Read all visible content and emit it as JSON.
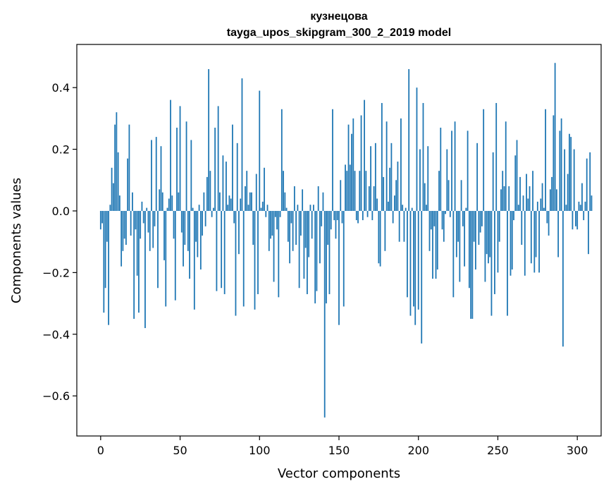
{
  "chart_data": {
    "type": "bar",
    "title": "кузнецова",
    "subtitle": "tayga_upos_skipgram_300_2_2019 model",
    "xlabel": "Vector components",
    "ylabel": "Components values",
    "xlim": [
      -15,
      315
    ],
    "ylim": [
      -0.73,
      0.54
    ],
    "xticks": [
      0,
      50,
      100,
      150,
      200,
      250,
      300
    ],
    "yticks": [
      -0.6,
      -0.4,
      -0.2,
      0.0,
      0.2,
      0.4
    ],
    "ytick_labels": [
      "−0.6",
      "−0.4",
      "−0.2",
      "0.0",
      "0.2",
      "0.4"
    ],
    "bar_color": "#1f77b4",
    "grid": false,
    "values": [
      -0.06,
      -0.04,
      -0.33,
      -0.25,
      -0.1,
      -0.37,
      0.02,
      0.14,
      0.09,
      0.28,
      0.32,
      0.19,
      0.05,
      -0.18,
      -0.13,
      -0.09,
      -0.11,
      0.17,
      0.28,
      -0.08,
      0.06,
      -0.35,
      -0.06,
      -0.21,
      -0.33,
      -0.09,
      0.03,
      -0.04,
      -0.38,
      0.01,
      -0.07,
      -0.13,
      0.23,
      -0.12,
      -0.05,
      0.24,
      -0.25,
      0.07,
      0.21,
      0.06,
      -0.16,
      -0.31,
      0.01,
      0.04,
      0.36,
      0.05,
      -0.09,
      -0.29,
      0.27,
      0.06,
      0.34,
      -0.07,
      -0.18,
      -0.11,
      0.29,
      -0.13,
      -0.22,
      0.23,
      0.01,
      -0.32,
      -0.1,
      -0.15,
      0.02,
      -0.19,
      -0.08,
      0.06,
      -0.05,
      0.11,
      0.46,
      0.13,
      -0.02,
      0.01,
      0.27,
      -0.26,
      0.34,
      0.06,
      -0.25,
      0.18,
      -0.27,
      0.16,
      0.02,
      0.05,
      0.04,
      0.28,
      -0.04,
      -0.34,
      0.22,
      -0.14,
      0.04,
      0.43,
      -0.31,
      0.08,
      0.13,
      0.02,
      0.06,
      0.06,
      -0.11,
      -0.32,
      0.12,
      -0.27,
      0.39,
      0.01,
      0.03,
      0.14,
      -0.02,
      0.02,
      -0.13,
      -0.09,
      -0.08,
      -0.23,
      -0.02,
      -0.06,
      -0.28,
      -0.02,
      0.33,
      0.13,
      0.06,
      0.01,
      -0.1,
      -0.17,
      -0.04,
      -0.13,
      0.08,
      -0.11,
      0.02,
      -0.25,
      -0.08,
      0.07,
      -0.22,
      -0.12,
      -0.27,
      -0.15,
      0.02,
      -0.09,
      0.02,
      -0.3,
      -0.26,
      0.08,
      -0.17,
      -0.05,
      0.06,
      -0.67,
      -0.3,
      -0.11,
      -0.27,
      -0.06,
      0.33,
      -0.03,
      -0.09,
      -0.03,
      -0.37,
      0.1,
      -0.04,
      -0.31,
      0.15,
      0.13,
      0.28,
      0.15,
      0.25,
      0.3,
      0.13,
      -0.03,
      -0.04,
      0.13,
      0.31,
      -0.03,
      0.36,
      0.13,
      -0.02,
      0.08,
      0.21,
      -0.03,
      0.08,
      0.22,
      0.04,
      -0.17,
      -0.18,
      0.35,
      0.11,
      -0.13,
      0.29,
      0.03,
      0.14,
      0.22,
      -0.04,
      0.05,
      0.1,
      0.16,
      -0.1,
      0.3,
      0.02,
      -0.1,
      0.01,
      -0.28,
      0.46,
      -0.34,
      0.01,
      -0.31,
      -0.37,
      0.4,
      -0.32,
      0.2,
      -0.43,
      0.35,
      0.09,
      0.02,
      0.21,
      -0.13,
      -0.06,
      -0.22,
      -0.05,
      -0.22,
      -0.19,
      0.13,
      0.27,
      -0.06,
      -0.1,
      -0.01,
      0.2,
      0.1,
      -0.02,
      0.26,
      -0.28,
      0.29,
      -0.15,
      -0.1,
      -0.23,
      0.1,
      -0.05,
      -0.18,
      0.01,
      0.26,
      -0.25,
      -0.35,
      -0.35,
      -0.1,
      -0.19,
      0.22,
      -0.11,
      -0.07,
      -0.05,
      0.33,
      -0.23,
      -0.14,
      -0.17,
      -0.15,
      -0.34,
      0.19,
      -0.27,
      0.35,
      -0.2,
      -0.1,
      0.07,
      0.13,
      0.08,
      0.29,
      -0.34,
      0.08,
      -0.21,
      -0.19,
      -0.03,
      0.18,
      0.23,
      0.02,
      0.11,
      -0.11,
      0.05,
      -0.21,
      0.12,
      0.04,
      0.08,
      -0.17,
      0.13,
      -0.2,
      -0.15,
      0.03,
      -0.2,
      0.04,
      0.09,
      0.01,
      0.33,
      -0.04,
      -0.08,
      0.07,
      0.11,
      0.31,
      0.48,
      0.07,
      -0.15,
      0.26,
      0.3,
      -0.44,
      0.2,
      0.02,
      0.12,
      0.25,
      0.24,
      -0.06,
      0.2,
      -0.05,
      -0.06,
      0.03,
      0.02,
      0.09,
      -0.03,
      0.03,
      0.17,
      -0.14,
      0.19,
      0.05
    ]
  }
}
